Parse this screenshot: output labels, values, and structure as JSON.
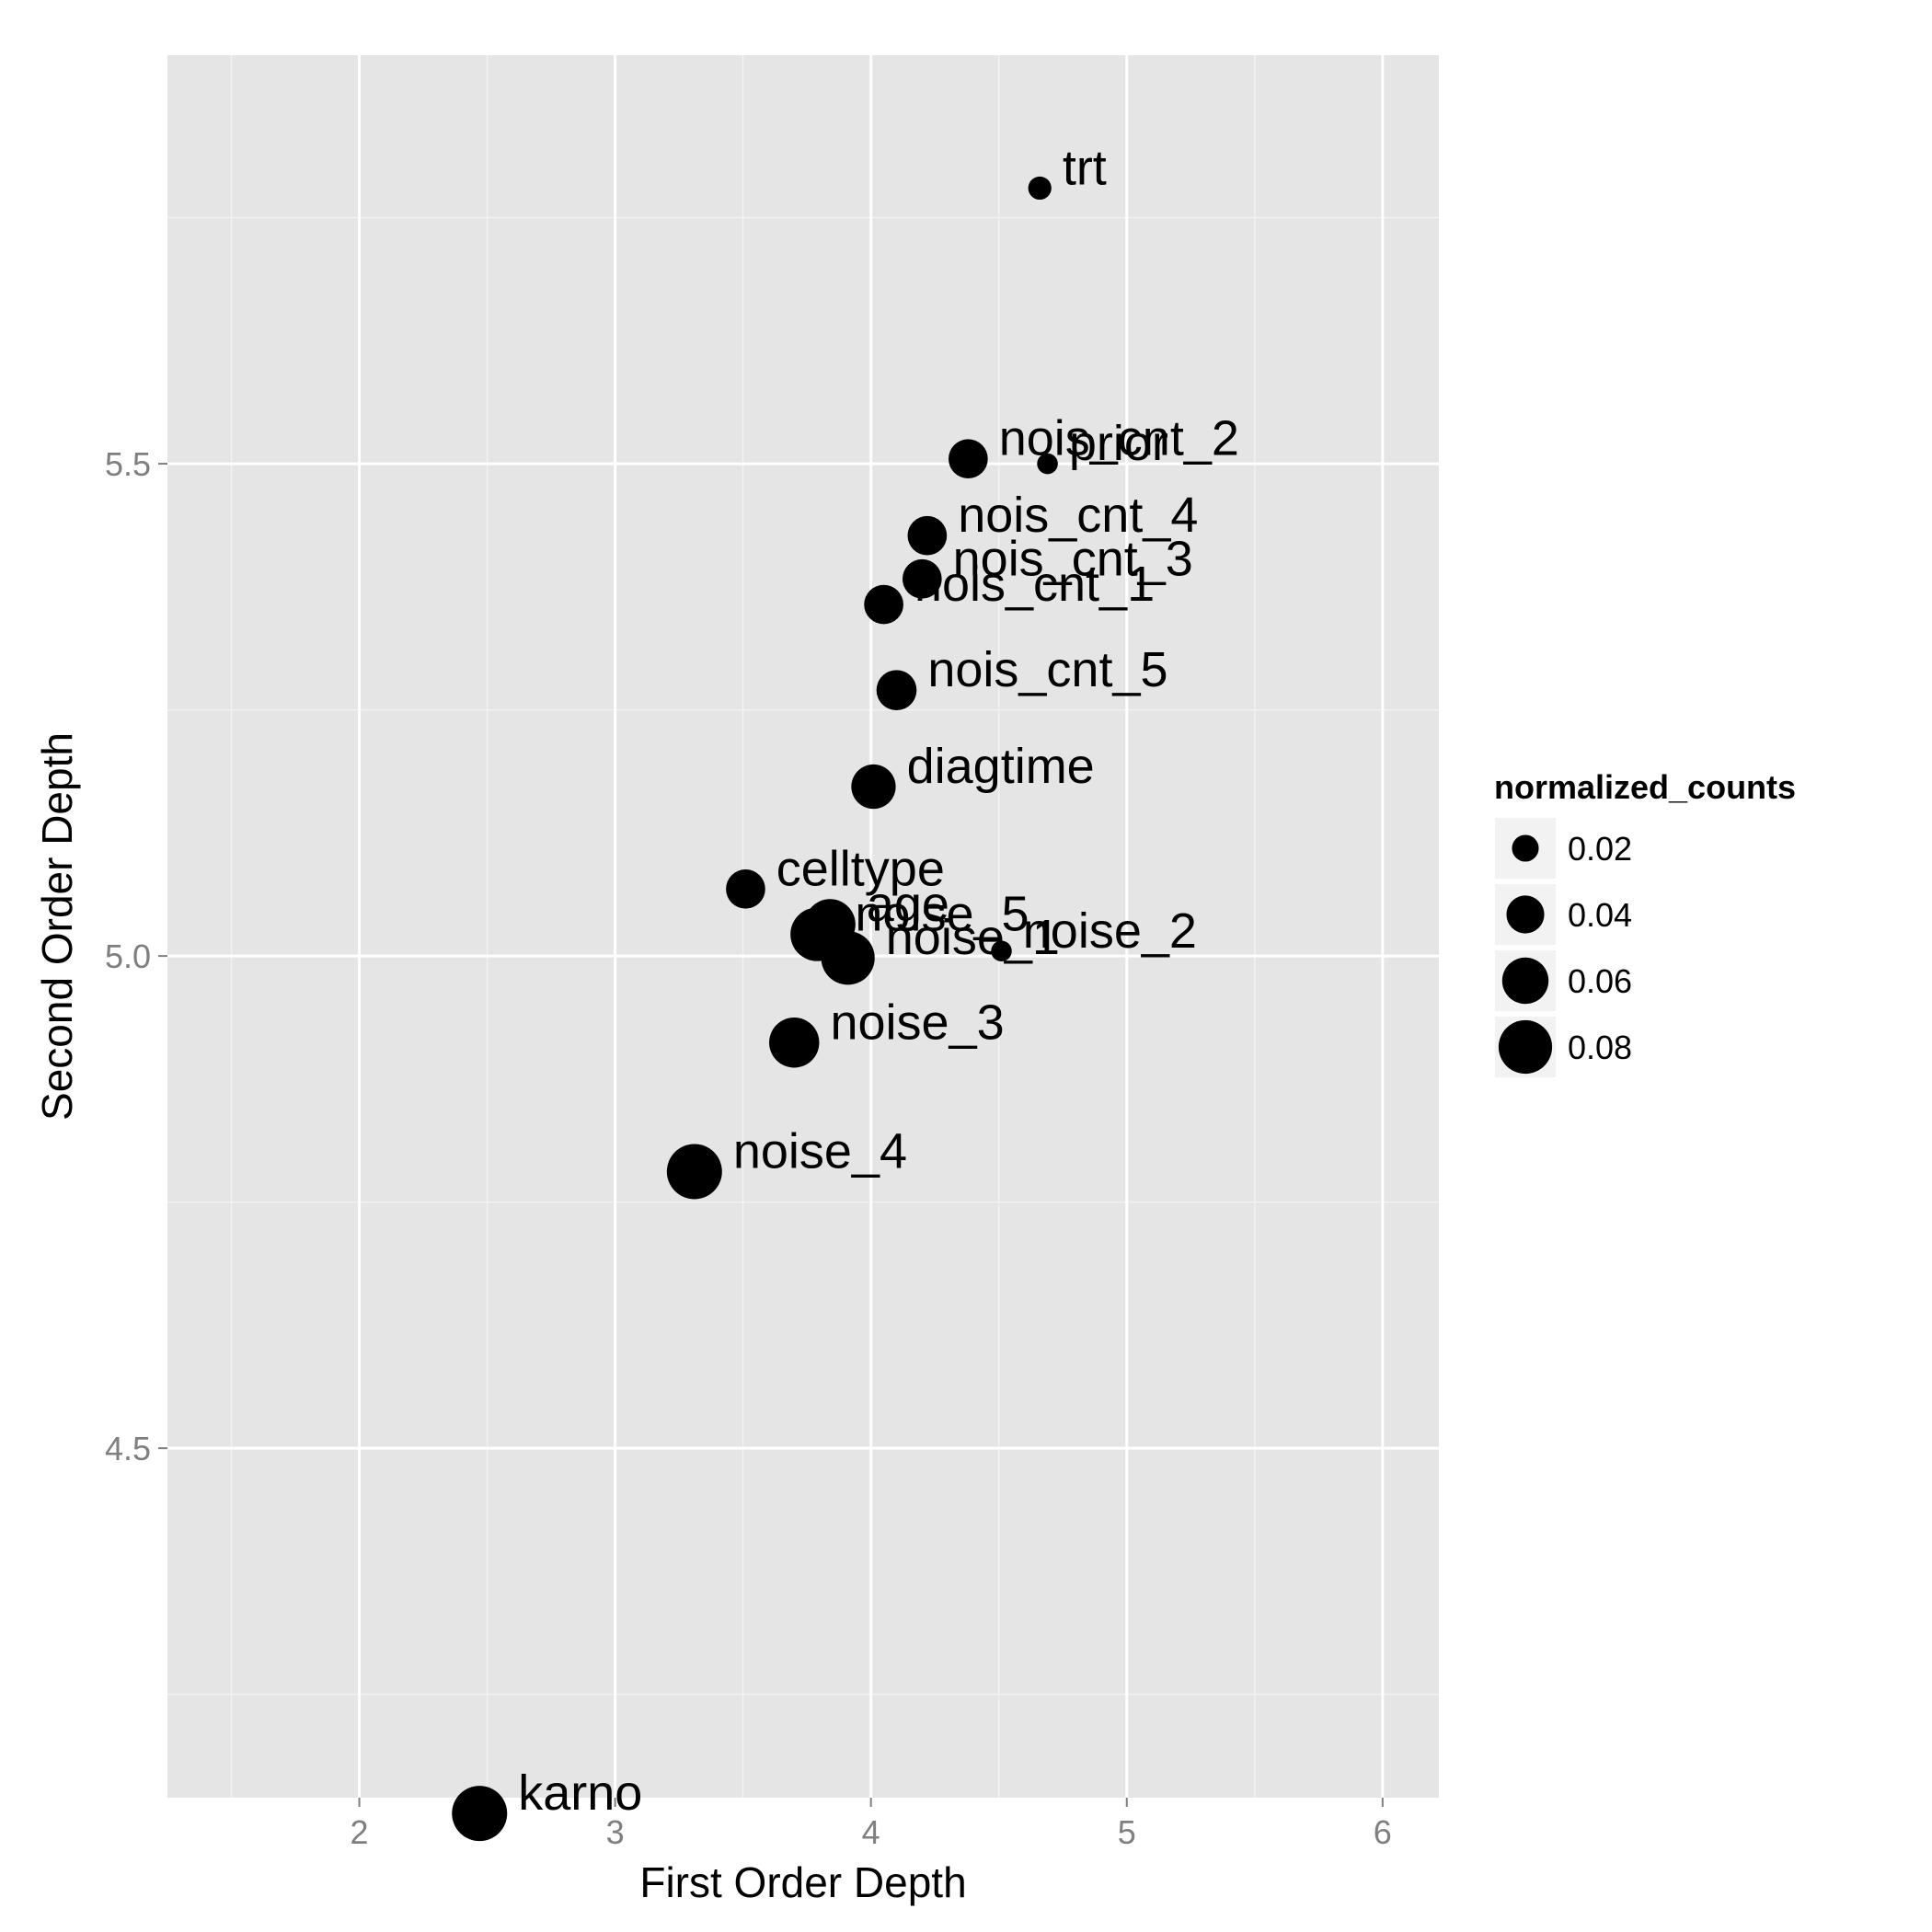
{
  "chart_data": {
    "type": "scatter",
    "xlabel": "First Order Depth",
    "ylabel": "Second Order Depth",
    "xlim": [
      1.25,
      6.22
    ],
    "ylim": [
      4.145,
      5.915
    ],
    "x_ticks": [
      2,
      3,
      4,
      5,
      6
    ],
    "y_ticks": [
      4.5,
      5.0,
      5.5
    ],
    "x_tick_labels": [
      "2",
      "3",
      "4",
      "5",
      "6"
    ],
    "y_tick_labels": [
      "4.5",
      "5.0",
      "5.5"
    ],
    "grid": true,
    "legend": {
      "title": "normalized_counts",
      "position": "right",
      "entries": [
        {
          "value": 0.02,
          "label": "0.02"
        },
        {
          "value": 0.04,
          "label": "0.04"
        },
        {
          "value": 0.06,
          "label": "0.06"
        },
        {
          "value": 0.08,
          "label": "0.08"
        }
      ]
    },
    "points": [
      {
        "label": "trt",
        "x": 4.66,
        "y": 5.78,
        "size": 0.015
      },
      {
        "label": "prior",
        "x": 4.69,
        "y": 5.5,
        "size": 0.012
      },
      {
        "label": "nois_cnt_2",
        "x": 4.38,
        "y": 5.505,
        "size": 0.043
      },
      {
        "label": "nois_cnt_4",
        "x": 4.22,
        "y": 5.427,
        "size": 0.043
      },
      {
        "label": "nois_cnt_3",
        "x": 4.2,
        "y": 5.383,
        "size": 0.043
      },
      {
        "label": "nois_cnt_1",
        "x": 4.05,
        "y": 5.357,
        "size": 0.043
      },
      {
        "label": "nois_cnt_5",
        "x": 4.1,
        "y": 5.27,
        "size": 0.045
      },
      {
        "label": "diagtime",
        "x": 4.01,
        "y": 5.172,
        "size": 0.055
      },
      {
        "label": "celltype",
        "x": 3.51,
        "y": 5.068,
        "size": 0.043
      },
      {
        "label": "age",
        "x": 3.84,
        "y": 5.032,
        "size": 0.072
      },
      {
        "label": "noise_5",
        "x": 3.79,
        "y": 5.022,
        "size": 0.08
      },
      {
        "label": "noise_2",
        "x": 4.51,
        "y": 5.005,
        "size": 0.012
      },
      {
        "label": "noise_1",
        "x": 3.91,
        "y": 4.998,
        "size": 0.08
      },
      {
        "label": "noise_3",
        "x": 3.7,
        "y": 4.912,
        "size": 0.07
      },
      {
        "label": "noise_4",
        "x": 3.31,
        "y": 4.781,
        "size": 0.085
      },
      {
        "label": "karno",
        "x": 2.47,
        "y": 4.129,
        "size": 0.085
      }
    ]
  }
}
